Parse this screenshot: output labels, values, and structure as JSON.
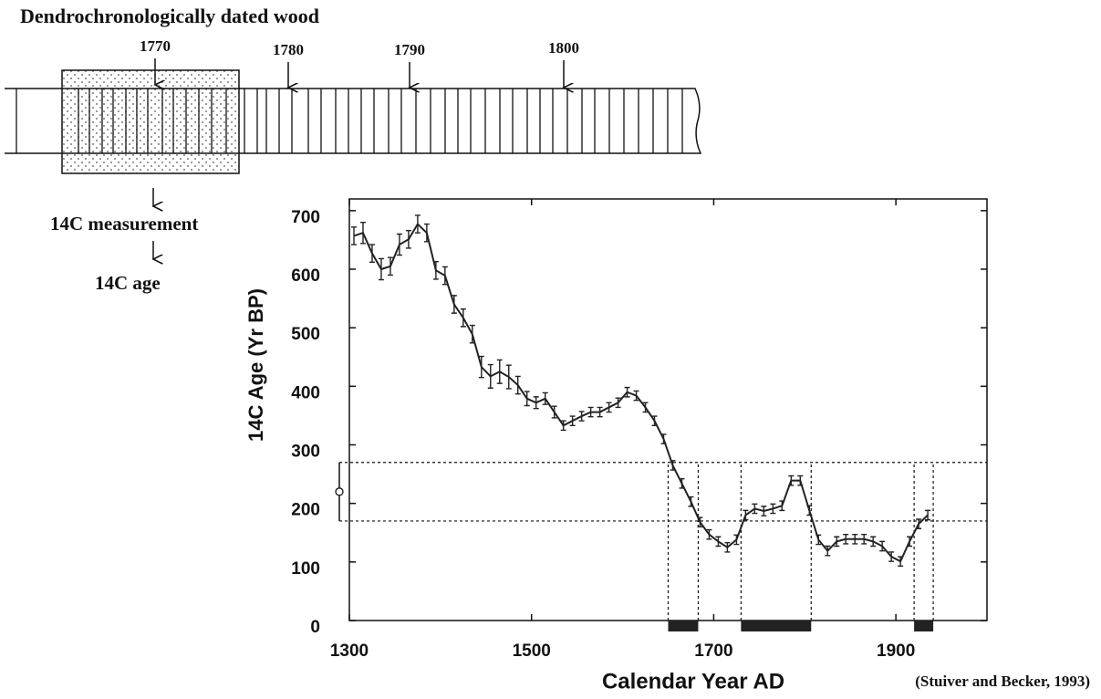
{
  "header": {
    "title": "Dendrochronologically dated wood",
    "year_labels": [
      "1770",
      "1780",
      "1790",
      "1800"
    ],
    "steps": [
      "14C measurement",
      "14C age"
    ],
    "citation": "(Stuiver and Becker, 1993)"
  },
  "chart_data": {
    "type": "line",
    "xlabel": "Calendar Year AD",
    "ylabel": "14C Age (Yr BP)",
    "x": [
      1305,
      1315,
      1325,
      1335,
      1345,
      1355,
      1365,
      1375,
      1385,
      1395,
      1405,
      1415,
      1425,
      1435,
      1445,
      1455,
      1465,
      1475,
      1485,
      1495,
      1505,
      1515,
      1525,
      1535,
      1545,
      1555,
      1565,
      1575,
      1585,
      1595,
      1605,
      1615,
      1625,
      1635,
      1645,
      1655,
      1665,
      1675,
      1685,
      1695,
      1705,
      1715,
      1725,
      1735,
      1745,
      1755,
      1765,
      1775,
      1785,
      1795,
      1805,
      1815,
      1825,
      1835,
      1845,
      1855,
      1865,
      1875,
      1885,
      1895,
      1905,
      1915,
      1925,
      1935
    ],
    "values": [
      657,
      662,
      627,
      600,
      605,
      642,
      651,
      677,
      662,
      598,
      589,
      540,
      517,
      489,
      433,
      417,
      425,
      416,
      402,
      379,
      372,
      379,
      356,
      333,
      341,
      349,
      356,
      356,
      364,
      372,
      390,
      384,
      364,
      341,
      310,
      265,
      234,
      203,
      168,
      147,
      135,
      125,
      138,
      180,
      191,
      187,
      191,
      196,
      239,
      239,
      188,
      138,
      119,
      135,
      139,
      139,
      139,
      135,
      127,
      109,
      101,
      135,
      165,
      180
    ],
    "errors": [
      15,
      18,
      15,
      18,
      15,
      18,
      15,
      15,
      15,
      15,
      15,
      15,
      15,
      15,
      18,
      20,
      20,
      20,
      15,
      12,
      10,
      10,
      10,
      8,
      8,
      8,
      8,
      8,
      8,
      8,
      8,
      8,
      8,
      8,
      8,
      8,
      8,
      8,
      8,
      8,
      8,
      8,
      8,
      8,
      8,
      8,
      8,
      8,
      8,
      8,
      8,
      8,
      8,
      8,
      8,
      8,
      8,
      8,
      8,
      8,
      8,
      8,
      8,
      8
    ],
    "color": "#222222",
    "measured_age": {
      "value": 220,
      "error": 50
    },
    "intervals": [
      [
        1650,
        1683
      ],
      [
        1730,
        1807
      ],
      [
        1920,
        1941
      ]
    ],
    "xlim": [
      1300,
      2000
    ],
    "ylim": [
      0,
      720
    ],
    "xticks": [
      1300,
      1500,
      1700,
      1900
    ],
    "yticks": [
      0,
      100,
      200,
      300,
      400,
      500,
      600,
      700
    ]
  }
}
